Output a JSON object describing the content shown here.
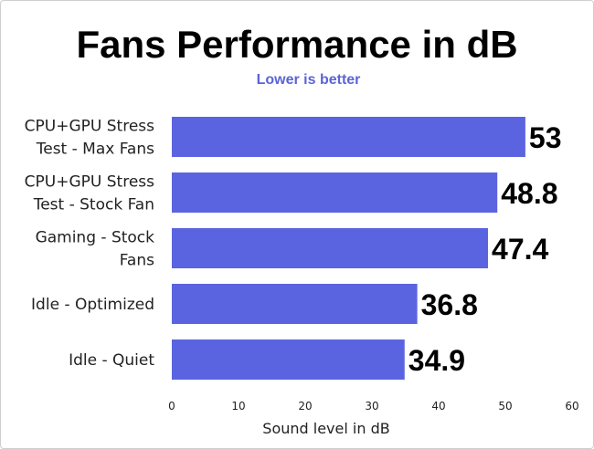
{
  "chart_data": {
    "type": "bar",
    "orientation": "horizontal",
    "title": "Fans Performance in dB",
    "subtitle": "Lower is better",
    "xlabel": "Sound level in dB",
    "ylabel": "",
    "xlim": [
      0,
      60
    ],
    "ticks": [
      0,
      10,
      20,
      30,
      40,
      50,
      60
    ],
    "grid": false,
    "categories": [
      [
        "CPU+GPU Stress",
        "Test - Max Fans"
      ],
      [
        "CPU+GPU Stress",
        "Test - Stock Fan"
      ],
      [
        "Gaming - Stock",
        "Fans"
      ],
      [
        "Idle - Optimized"
      ],
      [
        "Idle - Quiet"
      ]
    ],
    "values": [
      53,
      48.8,
      47.4,
      36.8,
      34.9
    ],
    "value_labels": [
      "53",
      "48.8",
      "47.4",
      "36.8",
      "34.9"
    ],
    "bar_color": "#5b64e0",
    "subtitle_color": "#5b64d6"
  }
}
